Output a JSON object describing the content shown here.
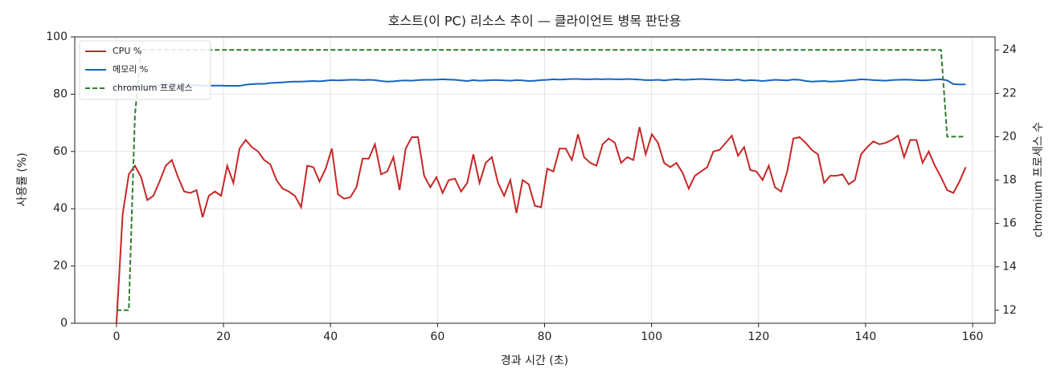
{
  "chart_data": {
    "type": "line",
    "title": "호스트(이 PC) 리소스 추이 — 클라이언트 병목 판단용",
    "x_label": "경과 시간 (초)",
    "y_label": "사용률 (%)",
    "y2_label": "chromium 프로세스 수",
    "xlim": [
      -7.8,
      164.2
    ],
    "xticks": [
      0,
      20,
      40,
      60,
      80,
      100,
      120,
      140,
      160
    ],
    "ylim": [
      0,
      100
    ],
    "yticks": [
      0,
      20,
      40,
      60,
      80,
      100
    ],
    "y2lim": [
      11.4,
      24.6
    ],
    "y2ticks": [
      12,
      14,
      16,
      18,
      20,
      22,
      24
    ],
    "grid": true,
    "legend": "upper-left",
    "x": [
      0,
      1.15,
      2.3,
      3.45,
      4.6,
      5.75,
      6.9,
      8.05,
      9.2,
      10.35,
      11.5,
      12.65,
      13.8,
      14.95,
      16.1,
      17.25,
      18.4,
      19.55,
      20.7,
      21.85,
      23,
      24.15,
      25.3,
      26.45,
      27.6,
      28.75,
      29.9,
      31.05,
      32.2,
      33.35,
      34.5,
      35.65,
      36.8,
      37.95,
      39.1,
      40.25,
      41.4,
      42.55,
      43.7,
      44.85,
      46,
      47.15,
      48.3,
      49.45,
      50.6,
      51.75,
      52.9,
      54.05,
      55.2,
      56.35,
      57.5,
      58.65,
      59.8,
      60.95,
      62.1,
      63.25,
      64.4,
      65.55,
      66.7,
      67.85,
      69,
      70.15,
      71.3,
      72.45,
      73.6,
      74.75,
      75.9,
      77.05,
      78.2,
      79.35,
      80.5,
      81.65,
      82.8,
      83.95,
      85.1,
      86.25,
      87.4,
      88.55,
      89.7,
      90.85,
      92,
      93.15,
      94.3,
      95.45,
      96.6,
      97.75,
      98.9,
      100.05,
      101.2,
      102.35,
      103.5,
      104.65,
      105.8,
      106.95,
      108.1,
      109.25,
      110.4,
      111.55,
      112.7,
      113.85,
      115,
      116.15,
      117.3,
      118.45,
      119.6,
      120.75,
      121.9,
      123.05,
      124.2,
      125.35,
      126.5,
      127.65,
      128.8,
      129.95,
      131.1,
      132.25,
      133.4,
      134.55,
      135.7,
      136.85,
      138,
      139.15,
      140.3,
      141.45,
      142.6,
      143.75,
      144.9,
      146.05,
      147.2,
      148.35,
      149.5,
      150.65,
      151.8,
      152.95,
      154.1,
      155.25,
      156.4,
      157.55,
      158.7
    ],
    "series": [
      {
        "name": "CPU %",
        "color": "#c62828",
        "values": [
          0,
          38,
          52,
          55,
          51,
          43,
          44.5,
          49.5,
          55,
          57,
          51,
          46,
          45.5,
          46.5,
          37,
          44.5,
          46,
          44.5,
          55,
          49,
          61,
          64,
          61.5,
          60,
          57,
          55.5,
          50,
          47,
          46,
          44.5,
          40.5,
          55,
          54.5,
          49.5,
          54,
          61,
          45,
          43.5,
          44,
          47.5,
          57.5,
          57.5,
          62.5,
          52,
          53,
          58,
          46.5,
          61,
          65,
          65,
          51.5,
          47.5,
          51,
          45.5,
          50,
          50.5,
          46,
          49,
          59,
          49,
          56,
          58,
          49,
          44.5,
          50,
          38.5,
          50,
          48.5,
          41,
          40.5,
          54,
          53,
          61,
          61,
          57,
          66,
          58,
          56,
          55,
          62.5,
          64.5,
          63,
          56,
          58,
          57,
          68.5,
          59,
          66,
          63,
          56,
          54.5,
          56,
          52.5,
          47,
          51.5,
          53,
          54.5,
          60,
          60.5,
          63,
          65.5,
          58.5,
          61.5,
          53.5,
          53,
          50,
          55,
          47.5,
          46,
          53,
          64.5,
          65,
          63,
          60.5,
          59,
          49,
          51.5,
          51.5,
          52,
          48.5,
          50,
          59,
          61.5,
          63.5,
          62.5,
          63,
          64,
          65.5,
          58,
          64,
          64,
          56,
          60,
          55,
          51,
          46.5,
          45.5,
          49.5,
          54.5
        ]
      },
      {
        "name": "메모리 %",
        "color": "#1565c0",
        "values": [
          82.5,
          82.6,
          82.7,
          82.8,
          82.8,
          82.9,
          82.9,
          83,
          83,
          83,
          83,
          83,
          83.1,
          83.1,
          83,
          83,
          83,
          83,
          82.9,
          82.9,
          82.9,
          83.3,
          83.5,
          83.6,
          83.6,
          83.9,
          84,
          84.1,
          84.3,
          84.4,
          84.4,
          84.5,
          84.6,
          84.5,
          84.7,
          84.9,
          84.8,
          84.9,
          85,
          85,
          84.9,
          85,
          84.9,
          84.6,
          84.4,
          84.5,
          84.7,
          84.8,
          84.7,
          84.9,
          85,
          85,
          85.1,
          85.2,
          85.1,
          85,
          84.8,
          84.6,
          84.9,
          84.7,
          84.8,
          84.9,
          84.9,
          84.8,
          84.7,
          84.9,
          84.8,
          84.6,
          84.7,
          84.9,
          85,
          85.2,
          85.1,
          85.2,
          85.3,
          85.3,
          85.2,
          85.2,
          85.3,
          85.2,
          85.3,
          85.2,
          85.2,
          85.3,
          85.2,
          85.1,
          84.9,
          84.9,
          85,
          84.8,
          85,
          85.2,
          85,
          85.1,
          85.2,
          85.3,
          85.2,
          85.1,
          85,
          84.9,
          84.9,
          85.1,
          84.7,
          84.9,
          84.8,
          84.6,
          84.8,
          85,
          84.9,
          84.8,
          85.1,
          85,
          84.6,
          84.4,
          84.5,
          84.6,
          84.4,
          84.5,
          84.6,
          84.8,
          84.9,
          85.2,
          85.1,
          84.9,
          84.8,
          84.7,
          84.9,
          85,
          85.1,
          85,
          84.9,
          84.8,
          84.9,
          85.1,
          85.2,
          84.8,
          83.5,
          83.4,
          83.4
        ]
      },
      {
        "name": "chromium 프로세스",
        "color": "#2e7d32",
        "dashed": true,
        "axis": "y2",
        "values": [
          12,
          12,
          12,
          21,
          24,
          24,
          24,
          24,
          24,
          24,
          24,
          24,
          24,
          24,
          24,
          24,
          24,
          24,
          24,
          24,
          24,
          24,
          24,
          24,
          24,
          24,
          24,
          24,
          24,
          24,
          24,
          24,
          24,
          24,
          24,
          24,
          24,
          24,
          24,
          24,
          24,
          24,
          24,
          24,
          24,
          24,
          24,
          24,
          24,
          24,
          24,
          24,
          24,
          24,
          24,
          24,
          24,
          24,
          24,
          24,
          24,
          24,
          24,
          24,
          24,
          24,
          24,
          24,
          24,
          24,
          24,
          24,
          24,
          24,
          24,
          24,
          24,
          24,
          24,
          24,
          24,
          24,
          24,
          24,
          24,
          24,
          24,
          24,
          24,
          24,
          24,
          24,
          24,
          24,
          24,
          24,
          24,
          24,
          24,
          24,
          24,
          24,
          24,
          24,
          24,
          24,
          24,
          24,
          24,
          24,
          24,
          24,
          24,
          24,
          24,
          24,
          24,
          24,
          24,
          24,
          24,
          24,
          24,
          24,
          24,
          24,
          24,
          24,
          24,
          24,
          24,
          24,
          24,
          24,
          24,
          20,
          20,
          20,
          20
        ]
      }
    ]
  }
}
